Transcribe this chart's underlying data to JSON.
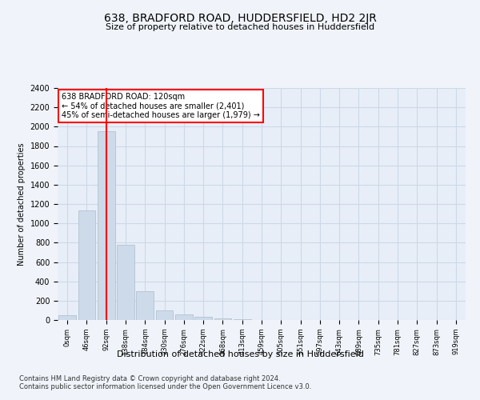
{
  "title": "638, BRADFORD ROAD, HUDDERSFIELD, HD2 2JR",
  "subtitle": "Size of property relative to detached houses in Huddersfield",
  "xlabel": "Distribution of detached houses by size in Huddersfield",
  "ylabel": "Number of detached properties",
  "footnote1": "Contains HM Land Registry data © Crown copyright and database right 2024.",
  "footnote2": "Contains public sector information licensed under the Open Government Licence v3.0.",
  "annotation_title": "638 BRADFORD ROAD: 120sqm",
  "annotation_line1": "← 54% of detached houses are smaller (2,401)",
  "annotation_line2": "45% of semi-detached houses are larger (1,979) →",
  "bar_color": "#cddaea",
  "bar_edge_color": "#aabbcc",
  "grid_color": "#ccd9e8",
  "red_line_x": 2,
  "bin_labels": [
    "0sqm",
    "46sqm",
    "92sqm",
    "138sqm",
    "184sqm",
    "230sqm",
    "276sqm",
    "322sqm",
    "368sqm",
    "413sqm",
    "459sqm",
    "505sqm",
    "551sqm",
    "597sqm",
    "643sqm",
    "689sqm",
    "735sqm",
    "781sqm",
    "827sqm",
    "873sqm",
    "919sqm"
  ],
  "bar_values": [
    50,
    1130,
    1950,
    780,
    300,
    100,
    55,
    30,
    20,
    10,
    0,
    0,
    0,
    0,
    0,
    0,
    0,
    0,
    0,
    0,
    0
  ],
  "ylim": [
    0,
    2400
  ],
  "yticks": [
    0,
    200,
    400,
    600,
    800,
    1000,
    1200,
    1400,
    1600,
    1800,
    2000,
    2200,
    2400
  ],
  "background_color": "#f0f4fa",
  "plot_bg_color": "#e8eef8"
}
